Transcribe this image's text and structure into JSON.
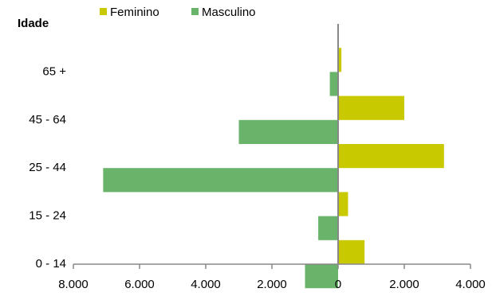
{
  "chart_data": {
    "type": "bar",
    "orientation": "horizontal",
    "y_label": "Idade",
    "categories": [
      "65 +",
      "45 - 64",
      "25 - 44",
      "15 - 24",
      "0 - 14"
    ],
    "series": [
      {
        "name": "Feminino",
        "color": "#c9c900",
        "values": [
          100,
          2000,
          3200,
          300,
          800
        ]
      },
      {
        "name": "Masculino",
        "color": "#69b36a",
        "values": [
          -250,
          -3000,
          -7100,
          -600,
          -1000
        ]
      }
    ],
    "xlim": [
      -8000,
      4000
    ],
    "xticks": [
      {
        "value": -8000,
        "label": "8.000"
      },
      {
        "value": -6000,
        "label": "6.000"
      },
      {
        "value": -4000,
        "label": "4.000"
      },
      {
        "value": -2000,
        "label": "2.000"
      },
      0,
      {
        "value": 2000,
        "label": "2.000"
      },
      {
        "value": 4000,
        "label": "4.000"
      }
    ],
    "legend": "top"
  }
}
